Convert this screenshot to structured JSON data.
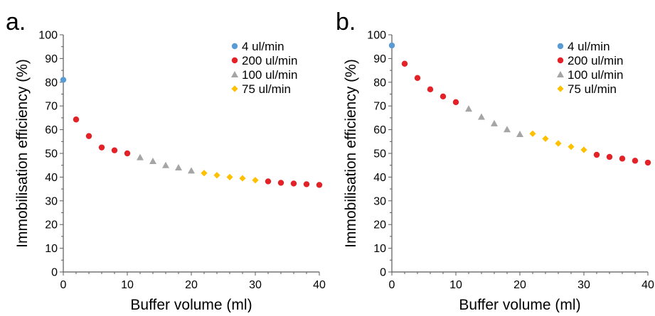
{
  "chart_data": [
    {
      "type": "scatter",
      "panel_label": "a.",
      "xlabel": "Buffer volume (ml)",
      "ylabel": "Immobilisation efficiency (%)",
      "xlim": [
        0,
        40
      ],
      "ylim": [
        0,
        100
      ],
      "xticks": [
        0,
        10,
        20,
        30,
        40
      ],
      "yticks": [
        0,
        10,
        20,
        30,
        40,
        50,
        60,
        70,
        80,
        90,
        100
      ],
      "grid": false,
      "legend_position": "top-right",
      "series": [
        {
          "name": "4 ul/min",
          "color": "#5b9bd5",
          "marker": "circle",
          "x": [
            0
          ],
          "y": [
            81
          ]
        },
        {
          "name": "200 ul/min",
          "color": "#e32126",
          "marker": "circle",
          "x": [
            2,
            4,
            6,
            8,
            10,
            32,
            34,
            36,
            38,
            40
          ],
          "y": [
            64.3,
            57.3,
            52.5,
            51.3,
            50.0,
            38.2,
            37.6,
            37.3,
            37.0,
            36.7
          ]
        },
        {
          "name": "100 ul/min",
          "color": "#a5a5a5",
          "marker": "triangle",
          "x": [
            12,
            14,
            16,
            18,
            20
          ],
          "y": [
            48.3,
            46.7,
            45.0,
            44.0,
            42.7
          ]
        },
        {
          "name": "75 ul/min",
          "color": "#ffc000",
          "marker": "diamond",
          "x": [
            22,
            24,
            26,
            28,
            30
          ],
          "y": [
            41.7,
            40.8,
            40.0,
            39.5,
            38.7
          ]
        }
      ]
    },
    {
      "type": "scatter",
      "panel_label": "b.",
      "xlabel": "Buffer volume (ml)",
      "ylabel": "Immobilisation efficiency (%)",
      "xlim": [
        0,
        40
      ],
      "ylim": [
        0,
        100
      ],
      "xticks": [
        0,
        10,
        20,
        30,
        40
      ],
      "yticks": [
        0,
        10,
        20,
        30,
        40,
        50,
        60,
        70,
        80,
        90,
        100
      ],
      "grid": false,
      "legend_position": "top-right",
      "series": [
        {
          "name": "4 ul/min",
          "color": "#5b9bd5",
          "marker": "circle",
          "x": [
            0
          ],
          "y": [
            95.5
          ]
        },
        {
          "name": "200 ul/min",
          "color": "#e32126",
          "marker": "circle",
          "x": [
            2,
            4,
            6,
            8,
            10,
            32,
            34,
            36,
            38,
            40
          ],
          "y": [
            87.8,
            81.8,
            77.0,
            74.0,
            71.6,
            49.4,
            48.5,
            47.8,
            46.9,
            46.1
          ]
        },
        {
          "name": "100 ul/min",
          "color": "#a5a5a5",
          "marker": "triangle",
          "x": [
            12,
            14,
            16,
            18,
            20
          ],
          "y": [
            68.8,
            65.4,
            62.6,
            60.1,
            58.1
          ]
        },
        {
          "name": "75 ul/min",
          "color": "#ffc000",
          "marker": "diamond",
          "x": [
            22,
            24,
            26,
            28,
            30
          ],
          "y": [
            58.3,
            56.2,
            54.2,
            52.8,
            51.5
          ]
        }
      ]
    }
  ]
}
